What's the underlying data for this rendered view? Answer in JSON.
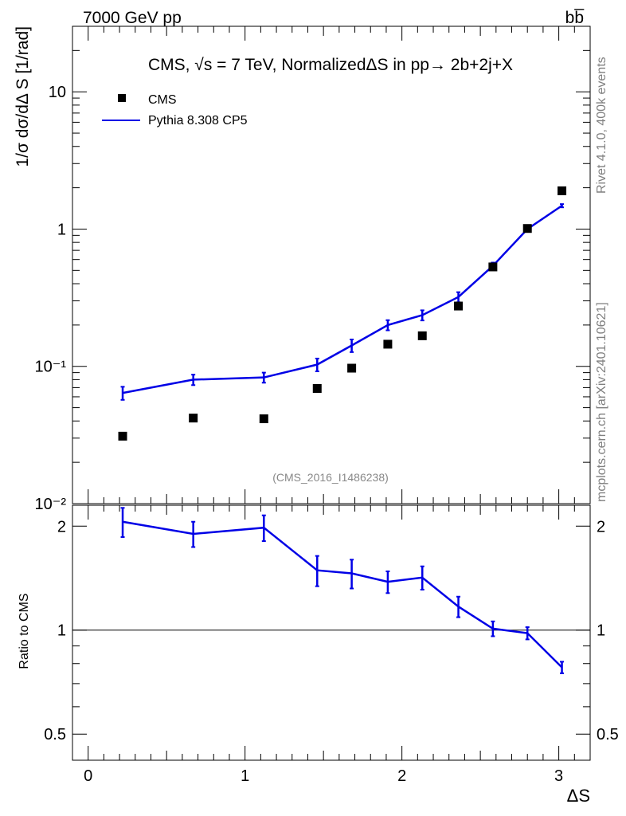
{
  "header": {
    "energy_label": "7000 GeV pp",
    "process_label": "bb̅"
  },
  "side": {
    "rivet_label": "Rivet 4.1.0,  400k events",
    "mcplots_label": "mcplots.cern.ch [arXiv:2401.10621]"
  },
  "chart_data": {
    "type": "scatter",
    "title": "CMS, √s = 7 TeV, NormalizedΔS in pp→  2b+2j+X",
    "analysis_label": "(CMS_2016_I1486238)",
    "xlabel": "ΔS",
    "ylabel": "1/σ dσ/dΔ S [1/rad]",
    "ratio_ylabel": "Ratio to CMS",
    "xlim": [
      -0.1,
      3.2
    ],
    "ylim": [
      0.01,
      30
    ],
    "yscale": "log",
    "ratio_ylim": [
      0.42,
      2.3
    ],
    "ratio_yscale": "log",
    "x_ticks": [
      "0",
      "1",
      "2",
      "3"
    ],
    "y_tick_labels": [
      "10⁻²",
      "10⁻¹",
      "1",
      "10"
    ],
    "ratio_tick_labels": [
      "0.5",
      "1",
      "2"
    ],
    "legend_position": "top-left",
    "series": [
      {
        "name": "CMS",
        "marker": "square",
        "color": "#000000",
        "x": [
          0.22,
          0.67,
          1.12,
          1.46,
          1.68,
          1.91,
          2.13,
          2.36,
          2.58,
          2.8,
          3.02
        ],
        "y": [
          0.031,
          0.042,
          0.0415,
          0.069,
          0.097,
          0.145,
          0.167,
          0.275,
          0.53,
          1.01,
          1.9
        ]
      },
      {
        "name": "Pythia 8.308 CP5",
        "marker": "line",
        "color": "#0000e6",
        "x": [
          0.22,
          0.67,
          1.12,
          1.46,
          1.68,
          1.91,
          2.13,
          2.36,
          2.58,
          2.8,
          3.02
        ],
        "y": [
          0.064,
          0.08,
          0.083,
          0.103,
          0.142,
          0.2,
          0.236,
          0.32,
          0.54,
          1.0,
          1.48
        ],
        "yerr": [
          0.007,
          0.007,
          0.007,
          0.011,
          0.015,
          0.017,
          0.02,
          0.027,
          0.03,
          0.04,
          0.04
        ]
      }
    ],
    "ratio": {
      "name": "Pythia 8.308 CP5 / CMS",
      "color": "#0000e6",
      "x": [
        0.22,
        0.67,
        1.12,
        1.46,
        1.68,
        1.91,
        2.13,
        2.36,
        2.58,
        2.8,
        3.02
      ],
      "y": [
        2.06,
        1.9,
        1.98,
        1.49,
        1.46,
        1.38,
        1.42,
        1.17,
        1.01,
        0.98,
        0.78
      ],
      "yerr": [
        0.2,
        0.16,
        0.17,
        0.15,
        0.14,
        0.1,
        0.11,
        0.08,
        0.05,
        0.04,
        0.03
      ],
      "reference_line": 1.0
    }
  }
}
